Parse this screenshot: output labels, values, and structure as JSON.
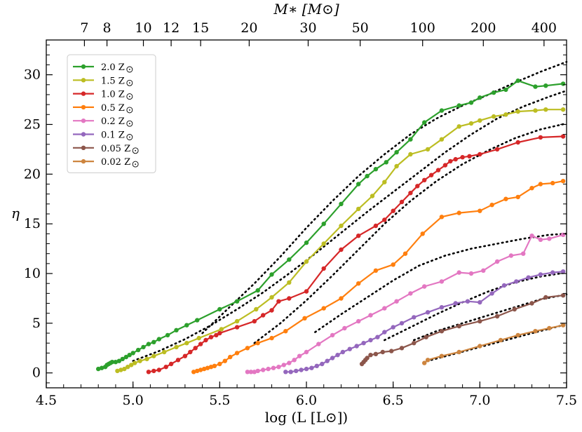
{
  "chart_data": {
    "type": "line",
    "xlabel": "log (L [L⊙])",
    "ylabel": "η",
    "top_axis_label": "M∗ [M⊙]",
    "xlim": [
      4.5,
      7.5
    ],
    "ylim": [
      -1.5,
      33.5
    ],
    "x_ticks": [
      4.5,
      5.0,
      5.5,
      6.0,
      6.5,
      7.0,
      7.5
    ],
    "x_tick_labels": [
      "4.5",
      "5.0",
      "5.5",
      "6.0",
      "6.5",
      "7.0",
      "7.5"
    ],
    "y_ticks": [
      0,
      5,
      10,
      15,
      20,
      25,
      30
    ],
    "y_tick_labels": [
      "0",
      "5",
      "10",
      "15",
      "20",
      "25",
      "30"
    ],
    "top_ticks": [
      {
        "label": "7",
        "x": 4.72
      },
      {
        "label": "8",
        "x": 4.85
      },
      {
        "label": "10",
        "x": 5.06
      },
      {
        "label": "12",
        "x": 5.22
      },
      {
        "label": "15",
        "x": 5.39
      },
      {
        "label": "20",
        "x": 5.67
      },
      {
        "label": "30",
        "x": 6.01
      },
      {
        "label": "50",
        "x": 6.31
      },
      {
        "label": "100",
        "x": 6.67
      },
      {
        "label": "200",
        "x": 7.02
      },
      {
        "label": "400",
        "x": 7.37
      }
    ],
    "series": [
      {
        "name": "2.0 Z⊙",
        "legend": "2.0 Z",
        "color": "#2ca02c",
        "x": [
          4.8,
          4.82,
          4.84,
          4.85,
          4.86,
          4.87,
          4.88,
          4.9,
          4.92,
          4.94,
          4.96,
          4.98,
          5.0,
          5.03,
          5.06,
          5.09,
          5.12,
          5.15,
          5.2,
          5.25,
          5.31,
          5.37,
          5.5,
          5.6,
          5.72,
          5.8,
          5.9,
          6.0,
          6.1,
          6.2,
          6.3,
          6.35,
          6.4,
          6.46,
          6.52,
          6.6,
          6.68,
          6.78,
          6.88,
          6.95,
          7.0,
          7.08,
          7.15,
          7.22,
          7.32,
          7.38,
          7.48
        ],
        "y": [
          0.4,
          0.5,
          0.6,
          0.8,
          0.9,
          1.0,
          1.1,
          1.1,
          1.2,
          1.4,
          1.6,
          1.8,
          2.0,
          2.3,
          2.6,
          2.9,
          3.1,
          3.4,
          3.8,
          4.3,
          4.8,
          5.3,
          6.4,
          7.2,
          8.3,
          9.9,
          11.4,
          13.1,
          15.0,
          17.0,
          19.0,
          19.8,
          20.5,
          21.2,
          22.2,
          23.5,
          25.2,
          26.4,
          26.9,
          27.2,
          27.7,
          28.2,
          28.5,
          29.4,
          28.8,
          28.9,
          29.1
        ]
      },
      {
        "name": "1.5 Z⊙",
        "legend": "1.5 Z",
        "color": "#bcbd22",
        "x": [
          4.91,
          4.93,
          4.95,
          4.97,
          4.99,
          5.01,
          5.04,
          5.08,
          5.12,
          5.18,
          5.25,
          5.31,
          5.38,
          5.51,
          5.6,
          5.71,
          5.8,
          5.9,
          6.0,
          6.1,
          6.2,
          6.3,
          6.38,
          6.45,
          6.52,
          6.6,
          6.7,
          6.78,
          6.88,
          6.95,
          7.0,
          7.08,
          7.15,
          7.22,
          7.32,
          7.38,
          7.48
        ],
        "y": [
          0.2,
          0.3,
          0.4,
          0.6,
          0.8,
          1.0,
          1.2,
          1.4,
          1.7,
          2.1,
          2.6,
          3.0,
          3.5,
          4.4,
          5.2,
          6.4,
          7.6,
          9.1,
          11.2,
          13.0,
          14.8,
          16.5,
          17.8,
          19.2,
          20.8,
          22.0,
          22.5,
          23.5,
          24.8,
          25.1,
          25.4,
          25.8,
          26.0,
          26.3,
          26.4,
          26.5,
          26.5
        ],
        "marker_skip": 0
      },
      {
        "name": "1.0 Z⊙",
        "legend": "1.0 Z",
        "color": "#d62728",
        "x": [
          5.09,
          5.12,
          5.15,
          5.19,
          5.22,
          5.26,
          5.3,
          5.33,
          5.36,
          5.39,
          5.42,
          5.45,
          5.48,
          5.5,
          5.6,
          5.7,
          5.75,
          5.8,
          5.84,
          5.9,
          6.0,
          6.1,
          6.2,
          6.3,
          6.4,
          6.45,
          6.5,
          6.55,
          6.6,
          6.64,
          6.68,
          6.72,
          6.76,
          6.8,
          6.83,
          6.86,
          6.9,
          6.94,
          7.0,
          7.1,
          7.22,
          7.35,
          7.48
        ],
        "y": [
          0.1,
          0.2,
          0.3,
          0.6,
          0.9,
          1.3,
          1.7,
          2.1,
          2.5,
          2.9,
          3.3,
          3.6,
          3.8,
          4.0,
          4.6,
          5.2,
          5.8,
          6.3,
          7.2,
          7.5,
          8.2,
          10.5,
          12.4,
          13.8,
          14.8,
          15.4,
          16.3,
          17.2,
          18.1,
          18.8,
          19.4,
          19.9,
          20.4,
          20.9,
          21.3,
          21.5,
          21.7,
          21.8,
          22.0,
          22.5,
          23.2,
          23.7,
          23.8
        ]
      },
      {
        "name": "0.5 Z⊙",
        "legend": "0.5 Z",
        "color": "#ff7f0e",
        "x": [
          5.35,
          5.37,
          5.39,
          5.41,
          5.43,
          5.45,
          5.47,
          5.5,
          5.53,
          5.56,
          5.6,
          5.66,
          5.72,
          5.8,
          5.88,
          5.99,
          6.1,
          6.2,
          6.3,
          6.4,
          6.5,
          6.57,
          6.67,
          6.78,
          6.88,
          7.0,
          7.07,
          7.15,
          7.22,
          7.3,
          7.35,
          7.42,
          7.48
        ],
        "y": [
          0.1,
          0.2,
          0.3,
          0.4,
          0.5,
          0.6,
          0.7,
          0.9,
          1.2,
          1.6,
          2.0,
          2.5,
          3.0,
          3.5,
          4.2,
          5.5,
          6.5,
          7.5,
          9.0,
          10.3,
          10.9,
          12.0,
          14.0,
          15.7,
          16.1,
          16.3,
          16.9,
          17.5,
          17.7,
          18.6,
          19.0,
          19.1,
          19.3
        ]
      },
      {
        "name": "0.2 Z⊙",
        "legend": "0.2 Z",
        "color": "#e377c2",
        "x": [
          5.66,
          5.68,
          5.7,
          5.72,
          5.75,
          5.78,
          5.81,
          5.84,
          5.87,
          5.9,
          5.93,
          5.96,
          6.0,
          6.07,
          6.15,
          6.22,
          6.3,
          6.37,
          6.45,
          6.52,
          6.6,
          6.68,
          6.78,
          6.88,
          6.95,
          7.02,
          7.1,
          7.18,
          7.25,
          7.3,
          7.35,
          7.4,
          7.48
        ],
        "y": [
          0.1,
          0.1,
          0.1,
          0.2,
          0.3,
          0.4,
          0.5,
          0.6,
          0.8,
          1.0,
          1.3,
          1.7,
          2.1,
          2.9,
          3.8,
          4.5,
          5.2,
          5.8,
          6.5,
          7.2,
          8.0,
          8.7,
          9.2,
          10.1,
          10.0,
          10.3,
          11.2,
          11.8,
          12.0,
          13.8,
          13.4,
          13.5,
          13.9
        ]
      },
      {
        "name": "0.1 Z⊙",
        "legend": "0.1 Z",
        "color": "#9467bd",
        "x": [
          5.88,
          5.91,
          5.94,
          5.97,
          6.0,
          6.03,
          6.06,
          6.09,
          6.12,
          6.15,
          6.18,
          6.21,
          6.25,
          6.29,
          6.33,
          6.37,
          6.41,
          6.45,
          6.5,
          6.55,
          6.62,
          6.7,
          6.78,
          6.86,
          6.93,
          7.0,
          7.07,
          7.14,
          7.21,
          7.28,
          7.35,
          7.42,
          7.48
        ],
        "y": [
          0.1,
          0.1,
          0.2,
          0.3,
          0.4,
          0.5,
          0.7,
          0.9,
          1.2,
          1.5,
          1.8,
          2.1,
          2.4,
          2.7,
          3.0,
          3.3,
          3.6,
          4.1,
          4.6,
          5.0,
          5.6,
          6.1,
          6.6,
          7.0,
          7.2,
          7.1,
          8.0,
          8.8,
          9.2,
          9.6,
          9.9,
          10.1,
          10.2
        ]
      },
      {
        "name": "0.05 Z⊙",
        "legend": "0.05 Z",
        "color": "#8c564b",
        "x": [
          6.32,
          6.33,
          6.34,
          6.35,
          6.37,
          6.4,
          6.44,
          6.49,
          6.55,
          6.62,
          6.69,
          6.78,
          6.88,
          7.0,
          7.1,
          7.2,
          7.3,
          7.38,
          7.48
        ],
        "y": [
          0.9,
          1.1,
          1.3,
          1.5,
          1.8,
          1.9,
          2.1,
          2.2,
          2.5,
          3.0,
          3.6,
          4.2,
          4.7,
          5.2,
          5.7,
          6.4,
          7.0,
          7.6,
          7.8
        ]
      },
      {
        "name": "0.02 Z⊙",
        "legend": "0.02 Z",
        "color": "#cd853f",
        "x": [
          6.68,
          6.7,
          6.78,
          6.88,
          7.0,
          7.12,
          7.22,
          7.32,
          7.4,
          7.48
        ],
        "y": [
          1.0,
          1.3,
          1.7,
          2.1,
          2.7,
          3.3,
          3.8,
          4.2,
          4.5,
          4.8
        ]
      }
    ],
    "fits": [
      {
        "x": [
          5.4,
          5.55,
          5.7,
          5.85,
          6.0,
          6.15,
          6.3,
          6.45,
          6.6,
          6.75,
          6.9,
          7.05,
          7.2,
          7.35,
          7.5
        ],
        "y": [
          4.0,
          6.5,
          9.0,
          11.7,
          14.6,
          17.3,
          19.8,
          22.0,
          24.0,
          25.6,
          26.9,
          28.0,
          29.2,
          30.3,
          31.3
        ]
      },
      {
        "x": [
          5.0,
          5.15,
          5.3,
          5.45,
          5.6,
          5.75,
          5.9,
          6.05,
          6.2,
          6.35,
          6.5,
          6.65,
          6.8,
          6.95,
          7.1,
          7.25,
          7.4,
          7.5
        ],
        "y": [
          1.2,
          2.2,
          3.4,
          4.8,
          6.4,
          8.1,
          10.0,
          12.0,
          14.1,
          16.2,
          18.2,
          20.2,
          22.2,
          24.0,
          25.6,
          26.8,
          27.8,
          28.4
        ]
      },
      {
        "x": [
          5.7,
          5.85,
          6.0,
          6.15,
          6.3,
          6.45,
          6.6,
          6.75,
          6.9,
          7.05,
          7.2,
          7.35,
          7.5
        ],
        "y": [
          3.0,
          5.0,
          7.3,
          9.8,
          12.4,
          15.0,
          17.3,
          19.3,
          21.0,
          22.4,
          23.6,
          24.5,
          25.1
        ]
      },
      {
        "x": [
          6.05,
          6.2,
          6.35,
          6.5,
          6.65,
          6.8,
          6.95,
          7.1,
          7.25,
          7.4,
          7.5
        ],
        "y": [
          4.1,
          5.9,
          7.6,
          9.3,
          10.8,
          11.8,
          12.5,
          13.0,
          13.5,
          13.9,
          14.0
        ]
      },
      {
        "x": [
          6.45,
          6.6,
          6.75,
          6.9,
          7.05,
          7.2,
          7.35,
          7.5
        ],
        "y": [
          3.3,
          4.6,
          5.9,
          7.1,
          8.2,
          9.1,
          9.7,
          10.1
        ]
      },
      {
        "x": [
          6.62,
          6.75,
          6.9,
          7.05,
          7.2,
          7.35,
          7.5
        ],
        "y": [
          3.3,
          4.2,
          5.0,
          5.8,
          6.6,
          7.4,
          7.9
        ]
      },
      {
        "x": [
          6.72,
          6.85,
          7.0,
          7.15,
          7.3,
          7.5
        ],
        "y": [
          1.3,
          1.9,
          2.6,
          3.3,
          4.0,
          4.9
        ]
      }
    ]
  }
}
